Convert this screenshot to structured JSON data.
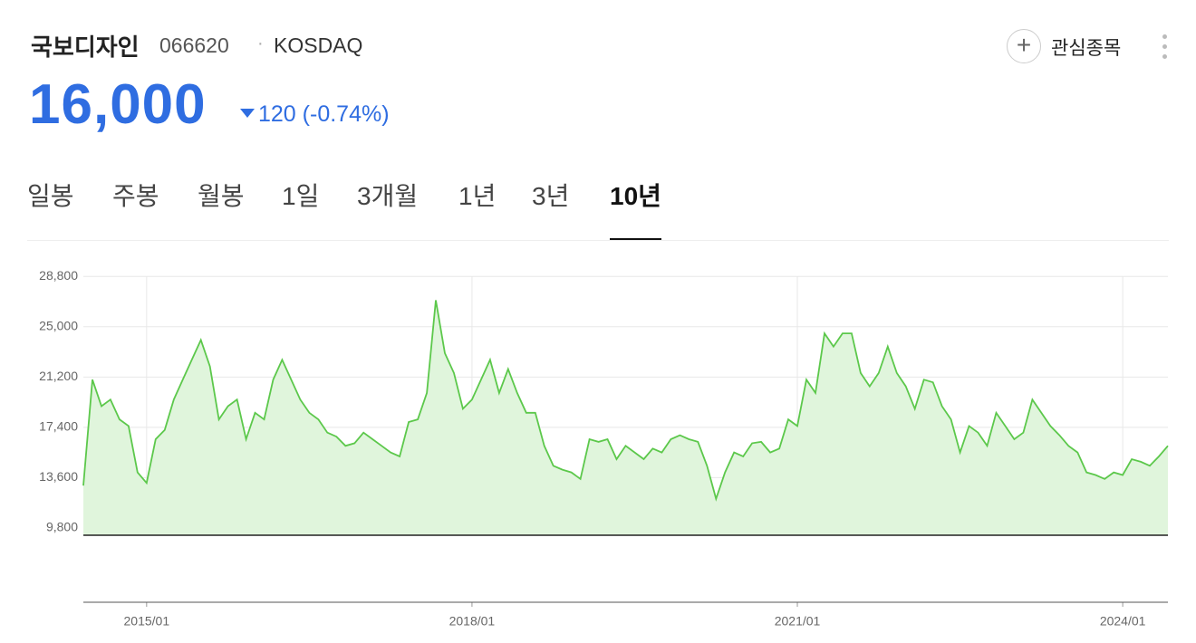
{
  "header": {
    "name": "국보디자인",
    "code": "066620",
    "market": "KOSDAQ",
    "price": "16,000",
    "change": "120",
    "change_pct": "(-0.74%)",
    "watch": "관심종목"
  },
  "tabs": {
    "items": [
      "일봉",
      "주봉",
      "월봉",
      "1일",
      "3개월",
      "1년",
      "3년",
      "10년"
    ],
    "active": 7
  },
  "chart_data": {
    "type": "area",
    "color": "#5cc84b",
    "fill": "#e0f5dc",
    "grid": true,
    "x": [
      "2014/06",
      "2014/07",
      "2014/08",
      "2014/09",
      "2014/10",
      "2014/11",
      "2014/12",
      "2015/01",
      "2015/02",
      "2015/03",
      "2015/04",
      "2015/05",
      "2015/06",
      "2015/07",
      "2015/08",
      "2015/09",
      "2015/10",
      "2015/11",
      "2015/12",
      "2016/01",
      "2016/02",
      "2016/03",
      "2016/04",
      "2016/05",
      "2016/06",
      "2016/07",
      "2016/08",
      "2016/09",
      "2016/10",
      "2016/11",
      "2016/12",
      "2017/01",
      "2017/02",
      "2017/03",
      "2017/04",
      "2017/05",
      "2017/06",
      "2017/07",
      "2017/08",
      "2017/09",
      "2017/10",
      "2017/11",
      "2017/12",
      "2018/01",
      "2018/02",
      "2018/03",
      "2018/04",
      "2018/05",
      "2018/06",
      "2018/07",
      "2018/08",
      "2018/09",
      "2018/10",
      "2018/11",
      "2018/12",
      "2019/01",
      "2019/02",
      "2019/03",
      "2019/04",
      "2019/05",
      "2019/06",
      "2019/07",
      "2019/08",
      "2019/09",
      "2019/10",
      "2019/11",
      "2019/12",
      "2020/01",
      "2020/02",
      "2020/03",
      "2020/04",
      "2020/05",
      "2020/06",
      "2020/07",
      "2020/08",
      "2020/09",
      "2020/10",
      "2020/11",
      "2020/12",
      "2021/01",
      "2021/02",
      "2021/03",
      "2021/04",
      "2021/05",
      "2021/06",
      "2021/07",
      "2021/08",
      "2021/09",
      "2021/10",
      "2021/11",
      "2021/12",
      "2022/01",
      "2022/02",
      "2022/03",
      "2022/04",
      "2022/05",
      "2022/06",
      "2022/07",
      "2022/08",
      "2022/09",
      "2022/10",
      "2022/11",
      "2022/12",
      "2023/01",
      "2023/02",
      "2023/03",
      "2023/04",
      "2023/05",
      "2023/06",
      "2023/07",
      "2023/08",
      "2023/09",
      "2023/10",
      "2023/11",
      "2023/12",
      "2024/01",
      "2024/02",
      "2024/03",
      "2024/04",
      "2024/05",
      "2024/06"
    ],
    "values": [
      13000,
      21000,
      19000,
      19500,
      18000,
      17500,
      14000,
      13200,
      16500,
      17200,
      19500,
      21000,
      22500,
      24000,
      22000,
      18000,
      19000,
      19500,
      16500,
      18500,
      18000,
      21000,
      22500,
      21000,
      19500,
      18500,
      18000,
      17000,
      16700,
      16000,
      16200,
      17000,
      16500,
      16000,
      15500,
      15200,
      17800,
      18000,
      20000,
      27000,
      23000,
      21500,
      18800,
      19500,
      21000,
      22500,
      20000,
      21800,
      20000,
      18500,
      18500,
      16000,
      14500,
      14200,
      14000,
      13500,
      16500,
      16300,
      16500,
      15000,
      16000,
      15500,
      15000,
      15800,
      15500,
      16500,
      16800,
      16500,
      16300,
      14500,
      12000,
      14000,
      15500,
      15200,
      16200,
      16300,
      15500,
      15800,
      18000,
      17500,
      21000,
      20000,
      24500,
      23500,
      24500,
      24500,
      21500,
      20500,
      21500,
      23500,
      21500,
      20500,
      18800,
      21000,
      20800,
      19000,
      18000,
      15500,
      17500,
      17000,
      16000,
      18500,
      17500,
      16500,
      17000,
      19500,
      18500,
      17500,
      16800,
      16000,
      15500,
      14000,
      13800,
      13500,
      14000,
      13800,
      15000,
      14800,
      14500,
      15200,
      16000
    ],
    "ylim": [
      9250,
      29500
    ],
    "yticks": [
      {
        "value": 28800,
        "label": "28,800"
      },
      {
        "value": 25000,
        "label": "25,000"
      },
      {
        "value": 21200,
        "label": "21,200"
      },
      {
        "value": 17400,
        "label": "17,400"
      },
      {
        "value": 13600,
        "label": "13,600"
      },
      {
        "value": 9800,
        "label": "9,800"
      }
    ],
    "xticks": [
      "2015/01",
      "2018/01",
      "2021/01",
      "2024/01"
    ]
  }
}
